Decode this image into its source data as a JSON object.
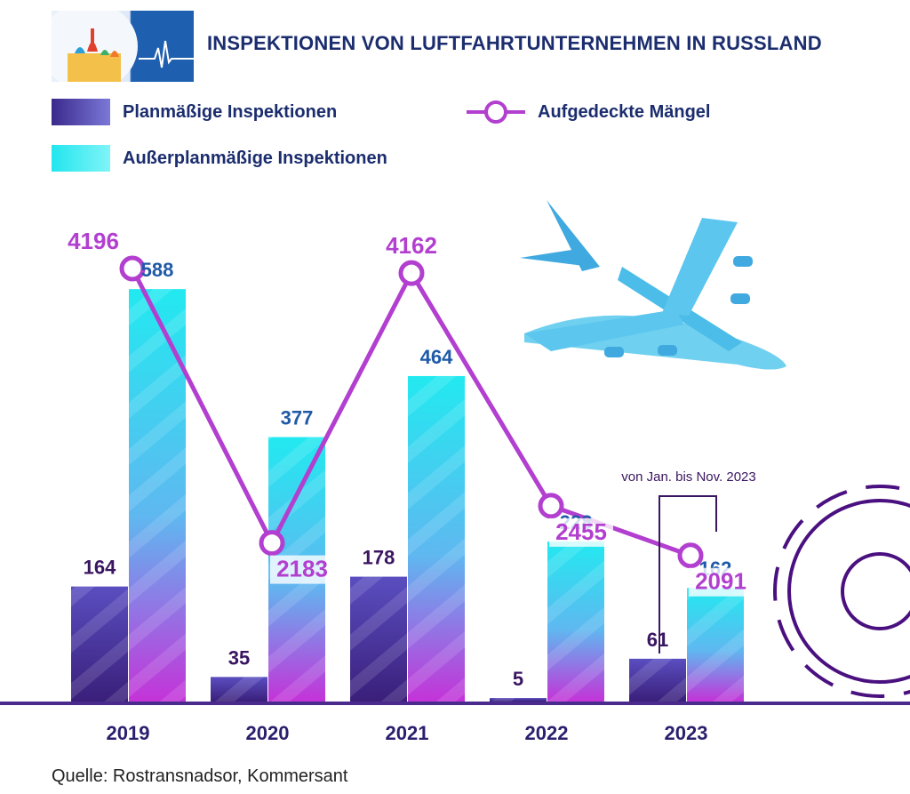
{
  "title": "INSPEKTIONEN VON LUFTFAHRTUNTERNEHMEN IN RUSSLAND",
  "legend": {
    "planned": "Planmäßige Inspektionen",
    "unplanned": "Außerplanmäßige Inspektionen",
    "defects": "Aufgedeckte Mängel"
  },
  "annotation": "von Jan. bis Nov. 2023",
  "source": "Quelle: Rostransnadsor, Kommersant",
  "colors": {
    "planned_dark": "#3a1f7a",
    "planned_light": "#7b78d8",
    "unplanned": "#22e9f0",
    "defects_line": "#b23fcf",
    "label_blue": "#1f5aa8",
    "label_purple": "#3a1560",
    "title": "#1b2d6e",
    "gear": "#4a1080"
  },
  "chart_data": {
    "type": "bar",
    "title": "INSPEKTIONEN VON LUFTFAHRTUNTERNEHMEN IN RUSSLAND",
    "categories": [
      "2019",
      "2020",
      "2021",
      "2022",
      "2023"
    ],
    "series": [
      {
        "name": "Planmäßige Inspektionen",
        "type": "bar",
        "values": [
          164,
          35,
          178,
          5,
          61
        ]
      },
      {
        "name": "Außerplanmäßige Inspektionen",
        "type": "bar",
        "values": [
          588,
          377,
          464,
          228,
          162
        ]
      },
      {
        "name": "Aufgedeckte Mängel",
        "type": "line",
        "values": [
          4196,
          2183,
          4162,
          2455,
          2091
        ]
      }
    ],
    "bar_axis_range": [
      0,
      630
    ],
    "line_axis_range": [
      1600,
      4600
    ],
    "legend_position": "top-left",
    "grid": false
  }
}
